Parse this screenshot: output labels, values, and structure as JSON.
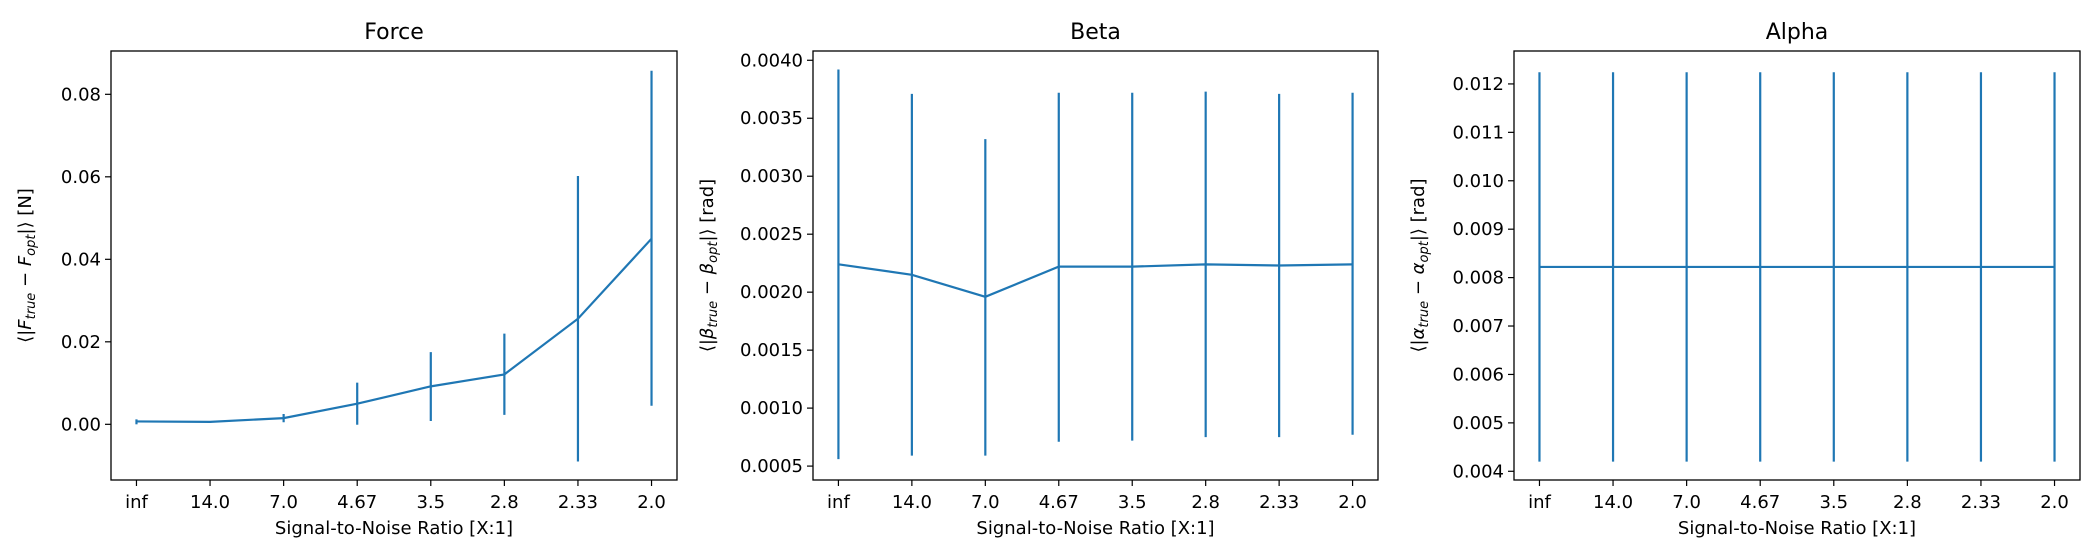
{
  "chart_data": [
    {
      "type": "line",
      "title": "Force",
      "xlabel": "Signal-to-Noise Ratio [X:1]",
      "ylabel": {
        "pre": "⟨|",
        "v1": "F",
        "s1": "true",
        "mid": " − ",
        "v2": "F",
        "s2": "opt",
        "post": "|⟩ [N]"
      },
      "categories": [
        "inf",
        "14.0",
        "7.0",
        "4.67",
        "3.5",
        "2.8",
        "2.33",
        "2.0"
      ],
      "ylim": [
        -0.0135,
        0.0905
      ],
      "yticks": [
        0.0,
        0.02,
        0.04,
        0.06,
        0.08
      ],
      "ytick_labels": [
        "0.00",
        "0.02",
        "0.04",
        "0.06",
        "0.08"
      ],
      "series": [
        {
          "values": [
            0.0007,
            0.0006,
            0.0015,
            0.005,
            0.0092,
            0.0121,
            0.0256,
            0.045
          ],
          "err_low": [
            0.0,
            0.0004,
            0.0005,
            -0.0001,
            0.0008,
            0.0023,
            -0.009,
            0.0045
          ],
          "err_high": [
            0.0012,
            0.0008,
            0.0025,
            0.0101,
            0.0175,
            0.022,
            0.0602,
            0.0857
          ]
        }
      ],
      "color": "#1f77b4",
      "grid": false
    },
    {
      "type": "line",
      "title": "Beta",
      "xlabel": "Signal-to-Noise Ratio [X:1]",
      "ylabel": {
        "pre": "⟨|",
        "v1": "β",
        "s1": "true",
        "mid": " − ",
        "v2": "β",
        "s2": "opt",
        "post": "|⟩ [rad]"
      },
      "categories": [
        "inf",
        "14.0",
        "7.0",
        "4.67",
        "3.5",
        "2.8",
        "2.33",
        "2.0"
      ],
      "ylim": [
        0.00038,
        0.00408
      ],
      "yticks": [
        0.0005,
        0.001,
        0.0015,
        0.002,
        0.0025,
        0.003,
        0.0035,
        0.004
      ],
      "ytick_labels": [
        "0.0005",
        "0.0010",
        "0.0015",
        "0.0020",
        "0.0025",
        "0.0030",
        "0.0035",
        "0.0040"
      ],
      "series": [
        {
          "values": [
            0.00224,
            0.00215,
            0.00196,
            0.00222,
            0.00222,
            0.00224,
            0.00223,
            0.00224
          ],
          "err_low": [
            0.00056,
            0.00059,
            0.00059,
            0.00071,
            0.00072,
            0.00075,
            0.00075,
            0.00077
          ],
          "err_high": [
            0.00392,
            0.00371,
            0.00332,
            0.00372,
            0.00372,
            0.00373,
            0.00371,
            0.00372
          ]
        }
      ],
      "color": "#1f77b4",
      "grid": false
    },
    {
      "type": "line",
      "title": "Alpha",
      "xlabel": "Signal-to-Noise Ratio [X:1]",
      "ylabel": {
        "pre": "⟨|",
        "v1": "α",
        "s1": "true",
        "mid": " − ",
        "v2": "α",
        "s2": "opt",
        "post": "|⟩ [rad]"
      },
      "categories": [
        "inf",
        "14.0",
        "7.0",
        "4.67",
        "3.5",
        "2.8",
        "2.33",
        "2.0"
      ],
      "ylim": [
        0.00382,
        0.01268
      ],
      "yticks": [
        0.004,
        0.005,
        0.006,
        0.007,
        0.008,
        0.009,
        0.01,
        0.011,
        0.012
      ],
      "ytick_labels": [
        "0.004",
        "0.005",
        "0.006",
        "0.007",
        "0.008",
        "0.009",
        "0.010",
        "0.011",
        "0.012"
      ],
      "series": [
        {
          "values": [
            0.00822,
            0.00822,
            0.00822,
            0.00822,
            0.00822,
            0.00822,
            0.00822,
            0.00822
          ],
          "err_low": [
            0.0042,
            0.0042,
            0.0042,
            0.0042,
            0.0042,
            0.0042,
            0.0042,
            0.0042
          ],
          "err_high": [
            0.01224,
            0.01224,
            0.01224,
            0.01224,
            0.01224,
            0.01224,
            0.01224,
            0.01224
          ]
        }
      ],
      "color": "#1f77b4",
      "grid": false
    }
  ]
}
